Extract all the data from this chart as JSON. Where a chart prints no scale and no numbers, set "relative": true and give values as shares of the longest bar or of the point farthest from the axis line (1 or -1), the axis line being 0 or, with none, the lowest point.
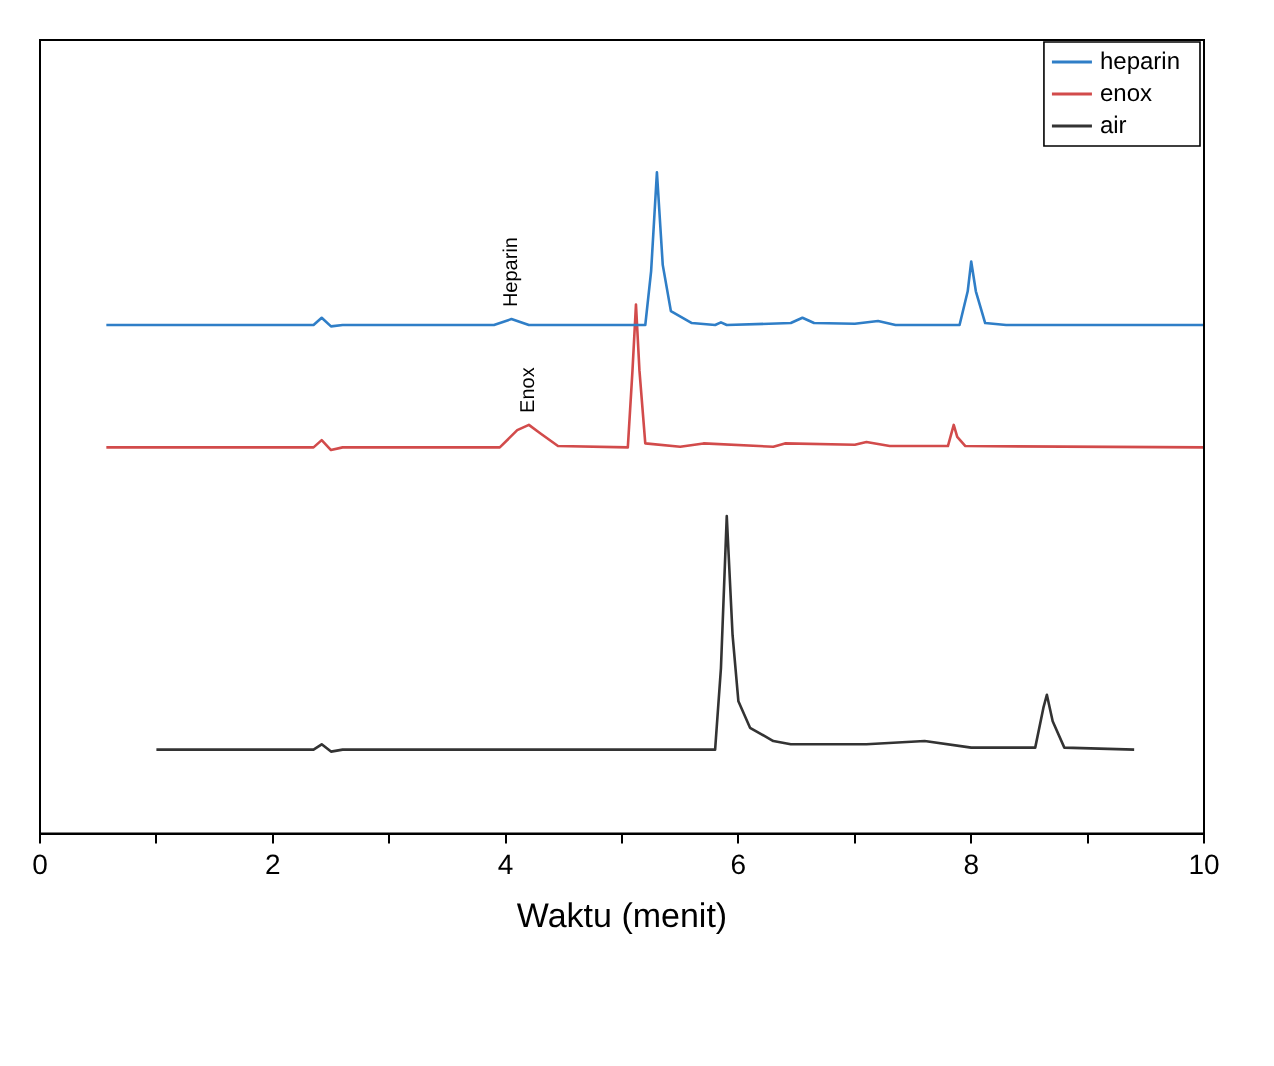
{
  "chart_data": {
    "type": "line",
    "relative": true,
    "xlabel": "Waktu (menit)",
    "xlim": [
      0,
      10
    ],
    "xticks": [
      0,
      {
        "value": 1,
        "label": null
      },
      2,
      {
        "value": 3,
        "label": null
      },
      4,
      {
        "value": 5,
        "label": null
      },
      6,
      {
        "value": 7,
        "label": null
      },
      8,
      {
        "value": 9,
        "label": null
      },
      10
    ],
    "legend": "top right",
    "grid": false,
    "marker": "none",
    "line_style": "solid",
    "annotations": [
      {
        "text": "Heparin",
        "x": 4.05,
        "y": 0.778
      },
      {
        "text": "Enox",
        "x": 4.2,
        "y": 0.618
      }
    ],
    "series": [
      {
        "name": "heparin",
        "color": "#2f7ec7",
        "x": [
          0.57,
          2.35,
          2.42,
          2.5,
          2.6,
          3.9,
          4.05,
          4.2,
          5.2,
          5.25,
          5.3,
          5.35,
          5.42,
          5.6,
          5.8,
          5.85,
          5.9,
          6.45,
          6.55,
          6.65,
          7.0,
          7.2,
          7.35,
          7.9,
          7.97,
          8.0,
          8.04,
          8.12,
          8.3,
          10
        ],
        "values": [
          0.769,
          0.769,
          0.78,
          0.767,
          0.769,
          0.769,
          0.778,
          0.769,
          0.769,
          0.85,
          1.0,
          0.86,
          0.79,
          0.772,
          0.769,
          0.773,
          0.769,
          0.772,
          0.78,
          0.772,
          0.771,
          0.775,
          0.769,
          0.769,
          0.82,
          0.865,
          0.82,
          0.772,
          0.769,
          0.769
        ]
      },
      {
        "name": "enox",
        "color": "#d24b4b",
        "x": [
          0.57,
          2.35,
          2.42,
          2.5,
          2.6,
          3.95,
          4.1,
          4.2,
          4.3,
          4.45,
          5.05,
          5.09,
          5.12,
          5.15,
          5.2,
          5.5,
          5.7,
          6.3,
          6.4,
          7.0,
          7.1,
          7.3,
          7.8,
          7.85,
          7.88,
          7.95,
          10
        ],
        "values": [
          0.584,
          0.584,
          0.595,
          0.58,
          0.584,
          0.584,
          0.61,
          0.618,
          0.605,
          0.586,
          0.584,
          0.7,
          0.8,
          0.7,
          0.59,
          0.585,
          0.59,
          0.585,
          0.59,
          0.588,
          0.592,
          0.586,
          0.586,
          0.618,
          0.6,
          0.586,
          0.584
        ]
      },
      {
        "name": "air",
        "color": "#333333",
        "x": [
          1.0,
          2.35,
          2.42,
          2.5,
          2.6,
          5.8,
          5.85,
          5.9,
          5.95,
          6.0,
          6.1,
          6.3,
          6.45,
          6.6,
          7.1,
          7.6,
          8.0,
          8.55,
          8.62,
          8.65,
          8.7,
          8.8,
          9.4
        ],
        "values": [
          0.127,
          0.127,
          0.135,
          0.124,
          0.127,
          0.127,
          0.25,
          0.48,
          0.3,
          0.2,
          0.16,
          0.14,
          0.135,
          0.135,
          0.135,
          0.14,
          0.13,
          0.13,
          0.19,
          0.21,
          0.17,
          0.13,
          0.127
        ]
      }
    ]
  }
}
